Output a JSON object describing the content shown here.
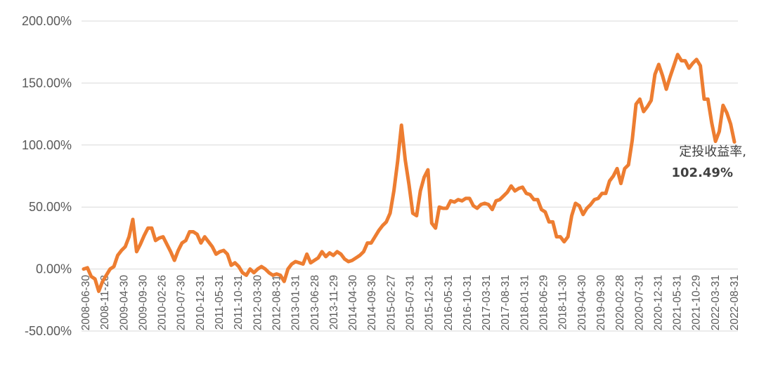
{
  "chart_data": {
    "type": "line",
    "title": "",
    "xlabel": "",
    "ylabel": "",
    "ylim": [
      -50,
      200
    ],
    "yticks": [
      "-50.00%",
      "0.00%",
      "50.00%",
      "100.00%",
      "150.00%",
      "200.00%"
    ],
    "ytick_values": [
      -50,
      0,
      50,
      100,
      150,
      200
    ],
    "grid": true,
    "legend": "none",
    "line_color": "#ED7D31",
    "grid_color": "#D9D9D9",
    "xticks": [
      "2008-06-30",
      "2008-11-28",
      "2009-04-30",
      "2009-09-30",
      "2010-02-26",
      "2010-07-30",
      "2010-12-31",
      "2011-05-31",
      "2011-10-31",
      "2012-03-30",
      "2012-08-31",
      "2013-01-31",
      "2013-06-28",
      "2013-11-29",
      "2014-04-30",
      "2014-09-30",
      "2015-02-27",
      "2015-07-31",
      "2015-12-31",
      "2016-05-31",
      "2016-10-31",
      "2017-03-31",
      "2017-08-31",
      "2018-01-31",
      "2018-06-29",
      "2018-11-30",
      "2019-04-30",
      "2019-09-30",
      "2020-02-28",
      "2020-07-31",
      "2020-12-31",
      "2021-05-31",
      "2021-10-29",
      "2022-03-31",
      "2022-08-31"
    ],
    "series": [
      {
        "values": [
          0,
          1,
          -6,
          -8,
          -18,
          -10,
          -5,
          0,
          2,
          11,
          15,
          18,
          26,
          40,
          14,
          20,
          27,
          33,
          33,
          23,
          25,
          26,
          20,
          14,
          7,
          15,
          21,
          23,
          30,
          30,
          28,
          21,
          26,
          22,
          18,
          12,
          14,
          15,
          12,
          3,
          5,
          2,
          -3,
          -5,
          0,
          -3,
          0,
          2,
          0,
          -3,
          -5,
          -4,
          -5,
          -10,
          0,
          4,
          6,
          5,
          4,
          12,
          5,
          7,
          9,
          14,
          10,
          13,
          11,
          14,
          12,
          8,
          6,
          7,
          9,
          11,
          14,
          21,
          21,
          26,
          31,
          35,
          38,
          45,
          63,
          87,
          116,
          88,
          68,
          45,
          43,
          63,
          74,
          80,
          37,
          33,
          50,
          49,
          49,
          55,
          54,
          56,
          55,
          57,
          57,
          51,
          49,
          52,
          53,
          52,
          48,
          55,
          56,
          59,
          62,
          67,
          63,
          65,
          66,
          61,
          60,
          56,
          56,
          48,
          46,
          38,
          38,
          26,
          26,
          22,
          26,
          43,
          53,
          51,
          44,
          49,
          52,
          56,
          57,
          61,
          61,
          71,
          75,
          81,
          69,
          81,
          84,
          104,
          133,
          137,
          127,
          131,
          136,
          157,
          165,
          156,
          145,
          155,
          164,
          173,
          168,
          168,
          162,
          166,
          169,
          164,
          137,
          137,
          118,
          103,
          111,
          132,
          126,
          117,
          102.49
        ]
      }
    ],
    "annotation": {
      "line1": "定投收益率,",
      "line2": "102.49%"
    }
  }
}
